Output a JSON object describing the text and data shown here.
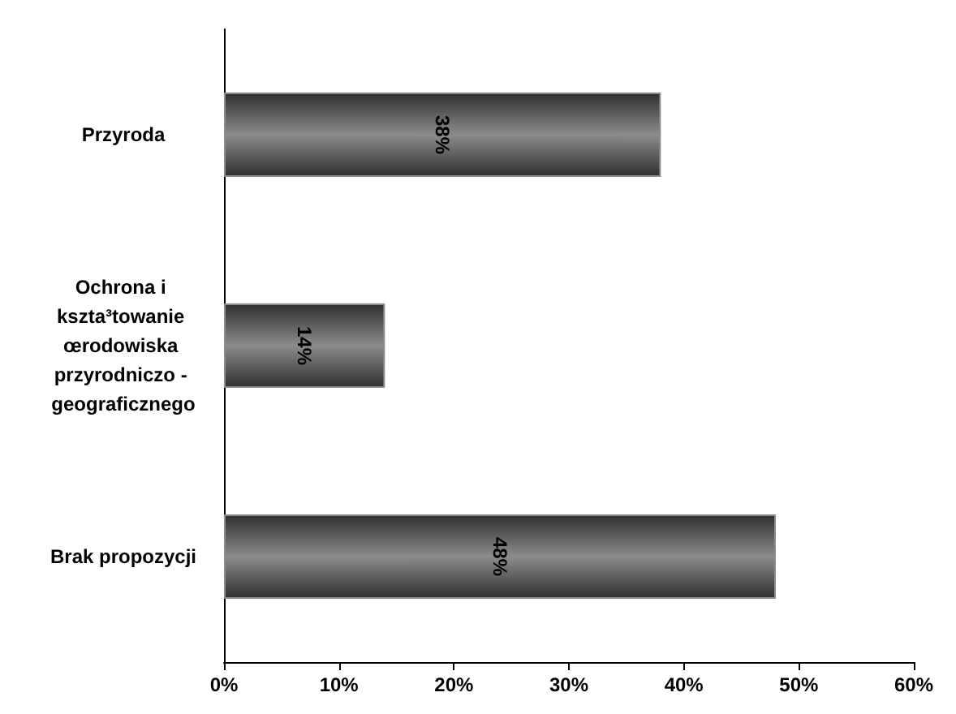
{
  "chart_data": {
    "type": "bar",
    "orientation": "horizontal",
    "categories": [
      "Przyroda",
      "Ochrona i kszta³towanie œrodowiska przyrodniczo - geograficznego",
      "Brak propozycji"
    ],
    "values": [
      38,
      14,
      48
    ],
    "color": "#8c8c8c",
    "value_labels": [
      "38%",
      "14%",
      "48%"
    ],
    "xlim": [
      0,
      60
    ],
    "xticks": [
      {
        "value": 0,
        "label": "0%"
      },
      {
        "value": 10,
        "label": "10%"
      },
      {
        "value": 20,
        "label": "20%"
      },
      {
        "value": 30,
        "label": "30%"
      },
      {
        "value": 40,
        "label": "40%"
      },
      {
        "value": 50,
        "label": "50%"
      },
      {
        "value": 60,
        "label": "60%"
      }
    ],
    "grid": false
  }
}
